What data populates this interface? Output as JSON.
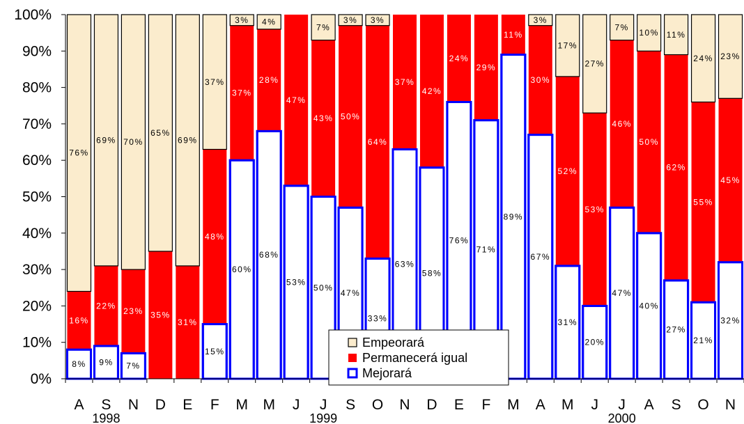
{
  "chart_data": {
    "type": "bar",
    "stacked": true,
    "categories": [
      "A",
      "S",
      "N",
      "D",
      "E",
      "F",
      "M",
      "M",
      "J",
      "J",
      "S",
      "O",
      "N",
      "D",
      "E",
      "F",
      "M",
      "A",
      "M",
      "J",
      "J",
      "A",
      "S",
      "O",
      "N"
    ],
    "year_labels": [
      {
        "text": "1998",
        "index": 1
      },
      {
        "text": "1999",
        "index": 9
      },
      {
        "text": "2000",
        "index": 20
      }
    ],
    "series": [
      {
        "name": "Mejorará",
        "color": "#ffffff",
        "border": "#0000ff",
        "values": [
          8,
          9,
          7,
          0,
          0,
          15,
          60,
          68,
          53,
          50,
          47,
          33,
          63,
          58,
          76,
          71,
          89,
          67,
          31,
          20,
          47,
          40,
          27,
          21,
          32
        ],
        "labels": [
          "8%",
          "9%",
          "7%",
          "",
          "",
          "15%",
          "60%",
          "68%",
          "53%",
          "50%",
          "47%",
          "33%",
          "63%",
          "58%",
          "76%",
          "71%",
          "89%",
          "67%",
          "31%",
          "20%",
          "47%",
          "40%",
          "27%",
          "21%",
          "32%"
        ]
      },
      {
        "name": "Permanecerá igual",
        "color": "#ff0000",
        "values": [
          16,
          22,
          23,
          35,
          31,
          48,
          37,
          28,
          47,
          43,
          50,
          64,
          37,
          42,
          24,
          29,
          11,
          30,
          52,
          53,
          46,
          50,
          62,
          55,
          45
        ],
        "labels": [
          "16%",
          "22%",
          "23%",
          "35%",
          "31%",
          "48%",
          "37%",
          "28%",
          "47%",
          "43%",
          "50%",
          "64%",
          "37%",
          "42%",
          "24%",
          "29%",
          "11%",
          "30%",
          "52%",
          "53%",
          "46%",
          "50%",
          "62%",
          "55%",
          "45%"
        ]
      },
      {
        "name": "Empeorará",
        "color": "#fbeccd",
        "values": [
          76,
          69,
          70,
          65,
          69,
          37,
          3,
          4,
          0,
          7,
          3,
          3,
          0,
          0,
          0,
          0,
          0,
          3,
          17,
          27,
          7,
          10,
          11,
          24,
          23
        ],
        "labels": [
          "76%",
          "69%",
          "70%",
          "65%",
          "69%",
          "37%",
          "3%",
          "4%",
          "",
          "7%",
          "3%",
          "3%",
          "",
          "",
          "",
          "",
          "",
          "3%",
          "17%",
          "27%",
          "7%",
          "10%",
          "11%",
          "24%",
          "23%"
        ]
      }
    ],
    "legend_order": [
      "Empeorará",
      "Permanecerá igual",
      "Mejorará"
    ],
    "legend_position": "bottom-center",
    "y_ticks": [
      "0%",
      "10%",
      "20%",
      "30%",
      "40%",
      "50%",
      "60%",
      "70%",
      "80%",
      "90%",
      "100%"
    ],
    "ylim": [
      0,
      100
    ],
    "grid": false
  }
}
